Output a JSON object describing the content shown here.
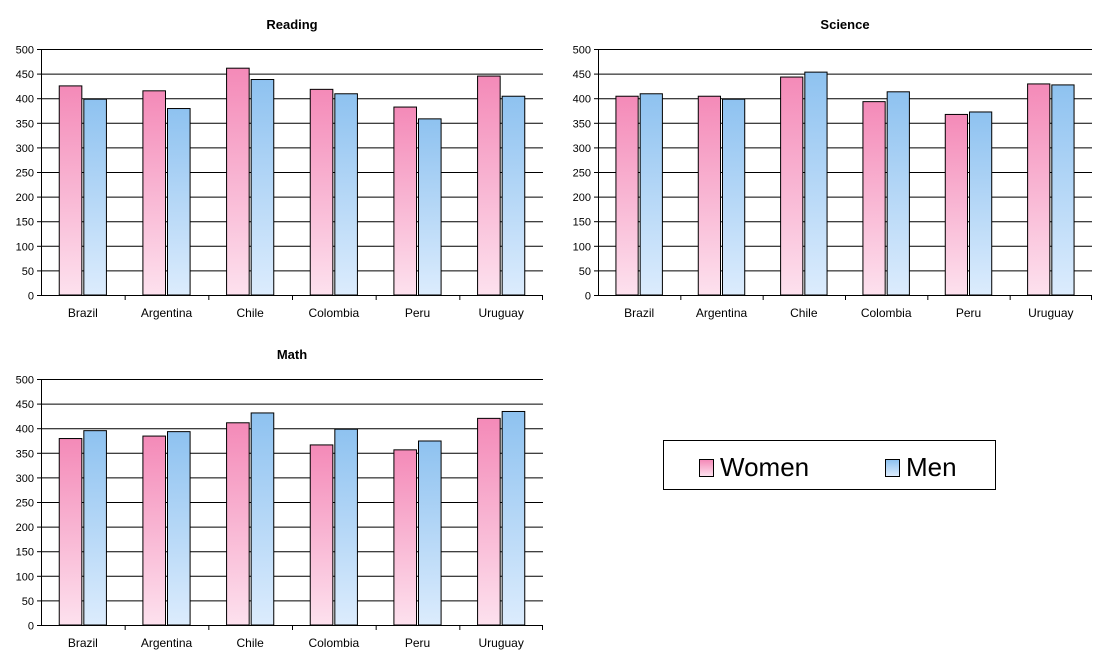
{
  "colors": {
    "women_top": "#f48ab8",
    "women_bottom": "#fde1ee",
    "men_top": "#8ec2f0",
    "men_bottom": "#dcecfd",
    "grid": "#000000"
  },
  "legend": {
    "women": "Women",
    "men": "Men"
  },
  "chart_data": [
    {
      "type": "bar",
      "title": "Reading",
      "categories": [
        "Brazil",
        "Argentina",
        "Chile",
        "Colombia",
        "Peru",
        "Uruguay"
      ],
      "series": [
        {
          "name": "Women",
          "values": [
            425,
            415,
            461,
            418,
            382,
            445
          ]
        },
        {
          "name": "Men",
          "values": [
            398,
            379,
            438,
            409,
            358,
            404
          ]
        }
      ],
      "ylim": [
        0,
        500
      ],
      "yticks": [
        0,
        50,
        100,
        150,
        200,
        250,
        300,
        350,
        400,
        450,
        500
      ],
      "grid": true
    },
    {
      "type": "bar",
      "title": "Science",
      "categories": [
        "Brazil",
        "Argentina",
        "Chile",
        "Colombia",
        "Peru",
        "Uruguay"
      ],
      "series": [
        {
          "name": "Women",
          "values": [
            404,
            404,
            443,
            393,
            367,
            429
          ]
        },
        {
          "name": "Men",
          "values": [
            409,
            398,
            453,
            413,
            372,
            427
          ]
        }
      ],
      "ylim": [
        0,
        500
      ],
      "yticks": [
        0,
        50,
        100,
        150,
        200,
        250,
        300,
        350,
        400,
        450,
        500
      ],
      "grid": true
    },
    {
      "type": "bar",
      "title": "Math",
      "categories": [
        "Brazil",
        "Argentina",
        "Chile",
        "Colombia",
        "Peru",
        "Uruguay"
      ],
      "series": [
        {
          "name": "Women",
          "values": [
            379,
            384,
            411,
            366,
            356,
            420
          ]
        },
        {
          "name": "Men",
          "values": [
            395,
            393,
            431,
            398,
            374,
            434
          ]
        }
      ],
      "ylim": [
        0,
        500
      ],
      "yticks": [
        0,
        50,
        100,
        150,
        200,
        250,
        300,
        350,
        400,
        450,
        500
      ],
      "grid": true
    }
  ]
}
